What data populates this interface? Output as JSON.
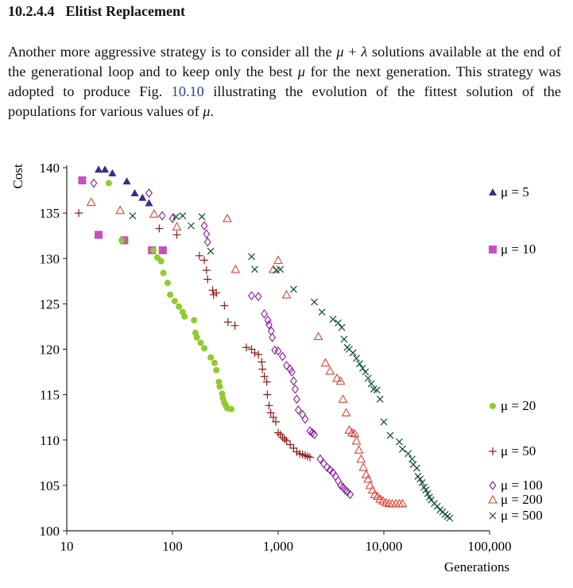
{
  "section": {
    "number": "10.2.4.4",
    "title": "Elitist Replacement"
  },
  "paragraph": {
    "t1": "Another more aggressive strategy is to consider all the ",
    "mu": "μ",
    "plus": " + ",
    "lambda": "λ",
    "t2": " solutions available at the end of the generational loop and to keep only the best ",
    "t3": " for the next generation. This strategy was adopted to produce Fig. ",
    "fig_ref": "10.10",
    "t4": " illustrating the evolution of the fittest solution of the populations for various values of ",
    "t5": "."
  },
  "chart_data": {
    "type": "scatter",
    "xlabel": "Generations",
    "ylabel": "Cost",
    "xscale": "log",
    "xlim": [
      10,
      100000
    ],
    "ylim": [
      100,
      140
    ],
    "xticks": [
      10,
      100,
      1000,
      10000,
      100000
    ],
    "xtick_labels": [
      "10",
      "100",
      "1,000",
      "10,000",
      "100,000"
    ],
    "yticks": [
      100,
      105,
      110,
      115,
      120,
      125,
      130,
      135,
      140
    ],
    "ytick_labels": [
      "100",
      "105",
      "110",
      "115",
      "120",
      "125",
      "130",
      "135",
      "140"
    ],
    "legend_placement": "right",
    "series": [
      {
        "name": "μ = 5",
        "marker": "filled-triangle",
        "color": "#3d2a8c",
        "x": [
          20,
          23,
          27,
          37,
          44,
          52,
          60
        ],
        "y": [
          139.8,
          139.8,
          139.4,
          138.5,
          137.2,
          136.7,
          136.1
        ]
      },
      {
        "name": "μ = 10",
        "marker": "filled-square",
        "color": "#c550c0",
        "x": [
          14,
          20,
          35,
          64,
          81
        ],
        "y": [
          138.6,
          132.6,
          132.0,
          130.9,
          130.9
        ]
      },
      {
        "name": "μ = 20",
        "marker": "filled-circle",
        "color": "#8fcc2c",
        "x": [
          25,
          33,
          66,
          72,
          78,
          82,
          90,
          95,
          105,
          115,
          125,
          130,
          160,
          165,
          170,
          185,
          200,
          230,
          250,
          260,
          275,
          280,
          295,
          300,
          310,
          320,
          330,
          360
        ],
        "y": [
          138.3,
          132.0,
          130.9,
          130.1,
          129.7,
          128.4,
          127.3,
          126.0,
          125.3,
          124.7,
          124.1,
          123.6,
          123.2,
          121.8,
          121.3,
          120.7,
          120.1,
          119.1,
          118.5,
          117.7,
          116.4,
          115.9,
          115.1,
          114.6,
          114.1,
          113.8,
          113.5,
          113.4
        ]
      },
      {
        "name": "μ = 50",
        "marker": "plus",
        "color": "#8b1e1e",
        "x": [
          13,
          75,
          110,
          180,
          200,
          210,
          215,
          240,
          245,
          260,
          310,
          335,
          390,
          500,
          560,
          600,
          650,
          700,
          710,
          740,
          780,
          790,
          820,
          850,
          900,
          950,
          1000,
          1050,
          1100,
          1150,
          1200,
          1300,
          1400,
          1500,
          1600,
          1700,
          1800,
          1900,
          2000
        ],
        "y": [
          135.0,
          133.3,
          132.6,
          130.3,
          129.8,
          128.7,
          127.7,
          126.5,
          126.0,
          126.2,
          124.8,
          123.0,
          122.6,
          120.2,
          120.0,
          119.6,
          119.4,
          118.6,
          117.8,
          117.0,
          116.4,
          115.0,
          113.8,
          113.0,
          112.5,
          112.0,
          110.8,
          110.6,
          110.3,
          110.1,
          109.9,
          109.5,
          109.1,
          108.7,
          108.5,
          108.4,
          108.3,
          108.2,
          108.1
        ]
      },
      {
        "name": "μ = 100",
        "marker": "open-diamond",
        "color": "#8a1a9a",
        "x": [
          18,
          60,
          80,
          100,
          200,
          210,
          215,
          560,
          650,
          740,
          800,
          820,
          860,
          880,
          930,
          1000,
          1100,
          1200,
          1300,
          1350,
          1400,
          1450,
          1500,
          1550,
          1700,
          1800,
          2000,
          2100,
          2200,
          2500,
          2700,
          2900,
          3100,
          3300,
          3500,
          3700,
          3900,
          4100,
          4300,
          4500,
          4800
        ],
        "y": [
          138.3,
          137.2,
          134.7,
          134.4,
          133.6,
          132.7,
          131.8,
          125.9,
          125.8,
          123.9,
          123.2,
          122.7,
          122.0,
          121.3,
          119.9,
          119.8,
          119.2,
          118.2,
          117.8,
          117.5,
          116.5,
          115.6,
          114.5,
          113.3,
          112.8,
          112.3,
          111.0,
          110.8,
          110.6,
          107.9,
          107.4,
          107.0,
          106.7,
          106.4,
          106.0,
          105.5,
          105.0,
          104.8,
          104.5,
          104.3,
          104.0
        ]
      },
      {
        "name": "μ = 200",
        "marker": "open-triangle",
        "color": "#dd4433",
        "x": [
          17,
          32,
          67,
          110,
          330,
          395,
          900,
          1000,
          1200,
          2400,
          2800,
          3100,
          3600,
          3900,
          4100,
          4400,
          4700,
          5000,
          5300,
          5500,
          5800,
          6100,
          6400,
          6800,
          7100,
          7400,
          7800,
          8200,
          8700,
          9200,
          9800,
          10500,
          11200,
          12000,
          13000,
          14000,
          15000
        ],
        "y": [
          136.2,
          135.3,
          134.9,
          133.5,
          134.4,
          128.8,
          128.8,
          129.8,
          126.0,
          121.4,
          118.5,
          117.6,
          116.8,
          116.5,
          114.5,
          113.0,
          111.1,
          110.8,
          110.7,
          109.9,
          108.9,
          107.9,
          107.0,
          106.2,
          105.7,
          105.0,
          104.5,
          104.0,
          103.8,
          103.5,
          103.3,
          103.1,
          103.0,
          103.0,
          103.0,
          103.0,
          103.0
        ]
      },
      {
        "name": "μ = 500",
        "marker": "cross",
        "color": "#0f4d2a",
        "x": [
          42,
          108,
          125,
          150,
          190,
          230,
          560,
          600,
          960,
          1050,
          1400,
          2200,
          2600,
          3300,
          3700,
          4000,
          4200,
          4500,
          4700,
          5100,
          5500,
          5900,
          6300,
          6700,
          7100,
          7600,
          8000,
          8600,
          9200,
          10000,
          11500,
          14000,
          15000,
          17000,
          18500,
          19000,
          20500,
          21000,
          22000,
          23000,
          24000,
          25000,
          26000,
          27000,
          28000,
          30000,
          32000,
          34000,
          36000,
          38000,
          40000,
          42000
        ],
        "y": [
          134.7,
          134.6,
          134.7,
          133.6,
          134.6,
          130.8,
          130.2,
          128.8,
          128.7,
          128.8,
          126.6,
          125.2,
          124.1,
          123.3,
          122.9,
          122.4,
          121.1,
          120.2,
          120.0,
          119.6,
          119.0,
          118.4,
          117.9,
          117.5,
          116.8,
          116.2,
          115.6,
          115.5,
          114.5,
          112.0,
          110.5,
          109.8,
          109.0,
          108.5,
          107.9,
          107.3,
          106.9,
          106.0,
          105.7,
          105.3,
          104.8,
          104.5,
          104.1,
          103.7,
          103.4,
          103.0,
          102.7,
          102.3,
          102.1,
          101.8,
          101.6,
          101.4
        ]
      }
    ]
  }
}
